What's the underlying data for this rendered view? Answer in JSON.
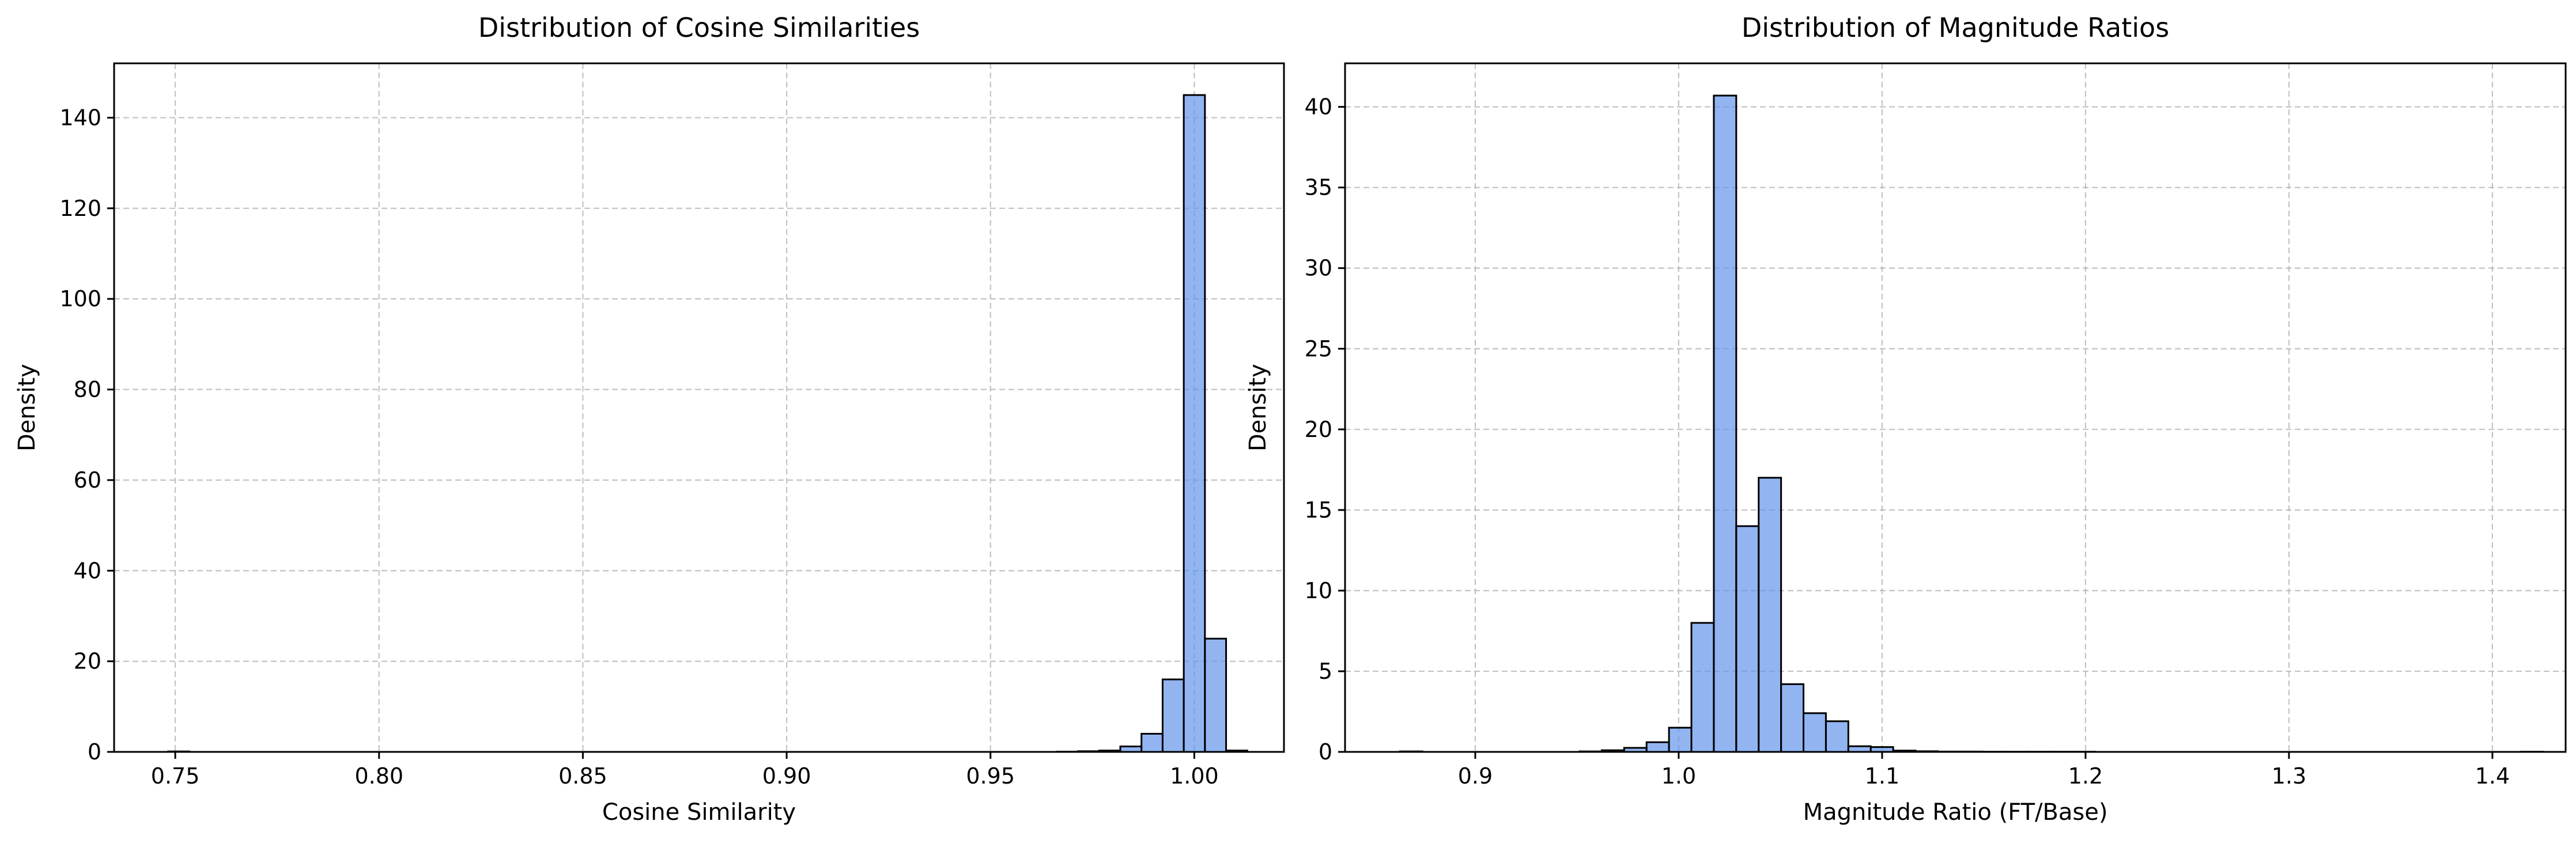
{
  "colors": {
    "bar_fill": "#6495ED",
    "bar_alpha": 0.7,
    "bar_edge": "#000000",
    "grid": "#b0b0b0",
    "axes": "#000000",
    "background": "#ffffff"
  },
  "chart_data": [
    {
      "type": "bar",
      "subtype": "histogram",
      "title": "Distribution of Cosine Similarities",
      "xlabel": "Cosine Similarity",
      "ylabel": "Density",
      "xlim": [
        0.735,
        1.022
      ],
      "ylim": [
        0,
        152
      ],
      "xticks": [
        0.75,
        0.8,
        0.85,
        0.9,
        0.95,
        1.0
      ],
      "xtick_labels": [
        "0.75",
        "0.80",
        "0.85",
        "0.90",
        "0.95",
        "1.00"
      ],
      "yticks": [
        0,
        20,
        40,
        60,
        80,
        100,
        120,
        140
      ],
      "ytick_labels": [
        "0",
        "20",
        "40",
        "60",
        "80",
        "100",
        "120",
        "140"
      ],
      "grid": true,
      "bin_start": 0.7483,
      "bin_width": 0.00519,
      "values": [
        0.1,
        0,
        0,
        0,
        0,
        0,
        0,
        0,
        0,
        0,
        0,
        0,
        0,
        0,
        0,
        0,
        0,
        0,
        0,
        0,
        0,
        0,
        0,
        0,
        0,
        0,
        0,
        0,
        0,
        0,
        0,
        0,
        0,
        0,
        0,
        0,
        0,
        0,
        0,
        0,
        0,
        0,
        0.05,
        0.15,
        0.3,
        1.2,
        4,
        16,
        145,
        25,
        0.3
      ]
    },
    {
      "type": "bar",
      "subtype": "histogram",
      "title": "Distribution of Magnitude Ratios",
      "xlabel": "Magnitude Ratio (FT/Base)",
      "ylabel": "Density",
      "xlim": [
        0.836,
        1.436
      ],
      "ylim": [
        0,
        42.7
      ],
      "xticks": [
        0.9,
        1.0,
        1.1,
        1.2,
        1.3,
        1.4
      ],
      "xtick_labels": [
        "0.9",
        "1.0",
        "1.1",
        "1.2",
        "1.3",
        "1.4"
      ],
      "yticks": [
        0,
        5,
        10,
        15,
        20,
        25,
        30,
        35,
        40
      ],
      "ytick_labels": [
        "0",
        "5",
        "10",
        "15",
        "20",
        "25",
        "30",
        "35",
        "40"
      ],
      "grid": true,
      "bin_start": 0.863,
      "bin_width": 0.01102,
      "values": [
        0.03,
        0,
        0,
        0,
        0,
        0,
        0,
        0,
        0.03,
        0.1,
        0.25,
        0.6,
        1.5,
        8,
        40.7,
        14,
        17,
        4.2,
        2.4,
        1.9,
        0.35,
        0.3,
        0.08,
        0.04,
        0.02,
        0.02,
        0.01,
        0.01,
        0.01,
        0.01,
        0.01,
        0,
        0,
        0,
        0,
        0,
        0,
        0,
        0,
        0,
        0,
        0,
        0,
        0,
        0,
        0,
        0,
        0,
        0,
        0,
        0.01,
        0
      ]
    }
  ]
}
